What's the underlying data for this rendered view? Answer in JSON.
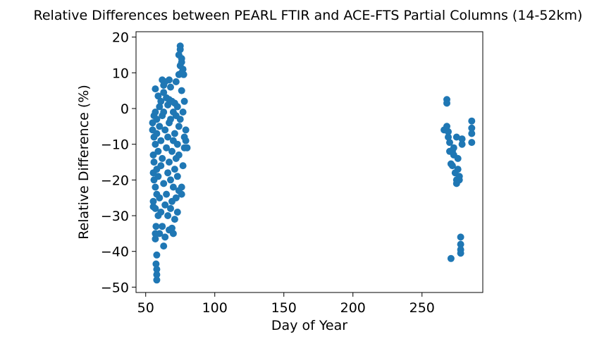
{
  "chart_data": {
    "type": "scatter",
    "title": "Relative Differences between PEARL FTIR and ACE-FTS Partial Columns (14-52km)",
    "xlabel": "Day of Year",
    "ylabel": "Relative Difference (%)",
    "xlim": [
      43,
      294
    ],
    "ylim": [
      -51.5,
      21.5
    ],
    "xticks": [
      50,
      100,
      150,
      200,
      250
    ],
    "yticks": [
      20,
      10,
      0,
      -10,
      -20,
      -30,
      -40,
      -50
    ],
    "xtick_labels": [
      "50",
      "100",
      "150",
      "200",
      "250"
    ],
    "ytick_labels": [
      "20",
      "10",
      "0",
      "−10",
      "−20",
      "−30",
      "−40",
      "−50"
    ],
    "grid": false,
    "legend": "none",
    "marker_color": "#1f77b4",
    "series": [
      {
        "points": [
          [
            55,
            -4
          ],
          [
            55,
            -6
          ],
          [
            55.5,
            -13
          ],
          [
            55.5,
            -18
          ],
          [
            55.5,
            -26
          ],
          [
            55.5,
            -27.5
          ],
          [
            56,
            -2
          ],
          [
            56,
            -8
          ],
          [
            56,
            -15
          ],
          [
            56,
            -20
          ],
          [
            57,
            -35
          ],
          [
            57,
            -36.5
          ],
          [
            57,
            5.5
          ],
          [
            57,
            -1
          ],
          [
            57,
            -10
          ],
          [
            57,
            -22
          ],
          [
            57,
            -28
          ],
          [
            57.5,
            -43.5
          ],
          [
            57.5,
            -33
          ],
          [
            58,
            -41
          ],
          [
            58,
            -45
          ],
          [
            58,
            -46.5
          ],
          [
            58,
            -48
          ],
          [
            58,
            -24
          ],
          [
            58,
            -17
          ],
          [
            58,
            -7
          ],
          [
            58,
            -3
          ],
          [
            59,
            3.5
          ],
          [
            59,
            -12
          ],
          [
            59,
            -30
          ],
          [
            59,
            -19
          ],
          [
            60,
            0.5
          ],
          [
            60,
            -5
          ],
          [
            60,
            -25
          ],
          [
            60,
            -35
          ],
          [
            61,
            2
          ],
          [
            61,
            -9
          ],
          [
            61,
            -16
          ],
          [
            61,
            -29
          ],
          [
            62,
            8
          ],
          [
            62,
            -2
          ],
          [
            62,
            -14
          ],
          [
            62,
            -33
          ],
          [
            63,
            4.5
          ],
          [
            63,
            6.5
          ],
          [
            63,
            -1
          ],
          [
            63,
            -21
          ],
          [
            63,
            -38.5
          ],
          [
            64,
            7.5
          ],
          [
            64,
            -6
          ],
          [
            64,
            -27
          ],
          [
            64,
            -36
          ],
          [
            65,
            3
          ],
          [
            65,
            -11
          ],
          [
            65,
            -24
          ],
          [
            66,
            1
          ],
          [
            66,
            -8
          ],
          [
            66,
            -18
          ],
          [
            66,
            -30
          ],
          [
            67,
            8
          ],
          [
            67,
            2.5
          ],
          [
            67,
            -4
          ],
          [
            67,
            -15
          ],
          [
            67,
            -34
          ],
          [
            68,
            6
          ],
          [
            68,
            -3
          ],
          [
            68,
            -20
          ],
          [
            68,
            -28
          ],
          [
            69,
            2
          ],
          [
            69,
            -12
          ],
          [
            69,
            -26
          ],
          [
            69,
            -33.5
          ],
          [
            70,
            -1
          ],
          [
            70,
            -9
          ],
          [
            70,
            -22
          ],
          [
            70,
            -35
          ],
          [
            71,
            1.5
          ],
          [
            71,
            -7
          ],
          [
            71,
            -17
          ],
          [
            71,
            -31
          ],
          [
            72,
            7.5
          ],
          [
            72,
            -2
          ],
          [
            72,
            -14
          ],
          [
            72,
            -25
          ],
          [
            73,
            0.5
          ],
          [
            73,
            -10
          ],
          [
            73,
            -19
          ],
          [
            73,
            -29
          ],
          [
            74,
            9.5
          ],
          [
            74,
            15
          ],
          [
            74,
            -5
          ],
          [
            74,
            -13
          ],
          [
            74,
            -23
          ],
          [
            75,
            17.5
          ],
          [
            75,
            16.5
          ],
          [
            75,
            12
          ],
          [
            75,
            -3
          ],
          [
            76,
            14
          ],
          [
            76,
            13
          ],
          [
            76,
            10
          ],
          [
            76,
            5
          ],
          [
            76,
            -22
          ],
          [
            76,
            -24
          ],
          [
            77,
            11
          ],
          [
            77,
            -1
          ],
          [
            77,
            -16
          ],
          [
            77.5,
            9.5
          ],
          [
            78,
            2
          ],
          [
            78,
            -8
          ],
          [
            78,
            -11
          ],
          [
            79,
            -6
          ],
          [
            79,
            -9
          ],
          [
            80,
            -11
          ],
          [
            266,
            -6
          ],
          [
            268,
            -5
          ],
          [
            268,
            2.5
          ],
          [
            268,
            1.5
          ],
          [
            269,
            -6.5
          ],
          [
            269,
            -8
          ],
          [
            270,
            -9.5
          ],
          [
            270,
            -12
          ],
          [
            271,
            -15.5
          ],
          [
            271,
            -42
          ],
          [
            272,
            -12
          ],
          [
            272,
            -16
          ],
          [
            273,
            -11
          ],
          [
            273,
            -13
          ],
          [
            274,
            -18
          ],
          [
            275,
            -8
          ],
          [
            275,
            -20
          ],
          [
            275,
            -21
          ],
          [
            276,
            -14
          ],
          [
            276,
            -17
          ],
          [
            277,
            -19
          ],
          [
            277,
            -20
          ],
          [
            278,
            -36
          ],
          [
            278,
            -38
          ],
          [
            278,
            -39.5
          ],
          [
            278,
            -40.5
          ],
          [
            279,
            -8.5
          ],
          [
            279,
            -10
          ],
          [
            286,
            -3.5
          ],
          [
            286,
            -5.5
          ],
          [
            286,
            -7
          ],
          [
            286,
            -9.5
          ]
        ]
      }
    ]
  }
}
